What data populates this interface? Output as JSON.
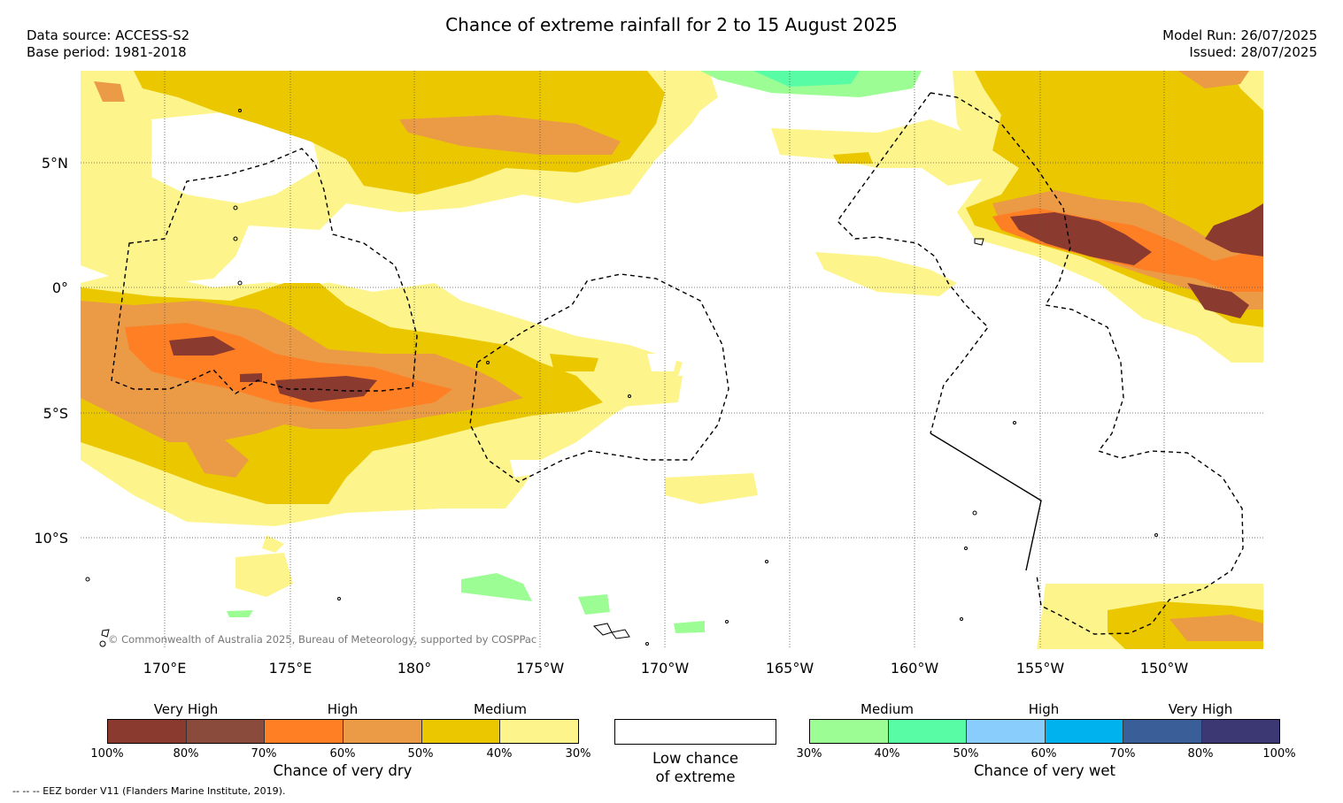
{
  "header": {
    "title": "Chance of extreme rainfall for 2 to 15 August 2025",
    "data_source": "Data source: ACCESS-S2",
    "base_period": "Base period: 1981-2018",
    "model_run": "Model Run: 26/07/2025",
    "issued": "Issued: 28/07/2025"
  },
  "map": {
    "lat_labels": [
      "5°N",
      "0°",
      "5°S",
      "10°S"
    ],
    "lon_labels": [
      "170°E",
      "175°E",
      "180°",
      "175°W",
      "170°W",
      "165°W",
      "160°W",
      "155°W",
      "150°W"
    ],
    "copyright": "© Commonwealth of Australia 2025, Bureau of Meteorology, supported by COSPPac"
  },
  "colors": {
    "dry": [
      "#8b3a2f",
      "#8a4b3d",
      "#ff7f24",
      "#eb9a46",
      "#ebc700",
      "#fdf58b"
    ],
    "low": "#ffffff",
    "wet": [
      "#9cfd95",
      "#57fca4",
      "#88cdfb",
      "#00b2ee",
      "#3a5f98",
      "#3c3873"
    ]
  },
  "legend": {
    "dry": {
      "categories": [
        "Very High",
        "High",
        "Medium"
      ],
      "ticks": [
        "100%",
        "80%",
        "70%",
        "60%",
        "50%",
        "40%",
        "30%"
      ],
      "title": "Chance of very dry"
    },
    "low": {
      "line1": "Low chance",
      "line2": "of extreme"
    },
    "wet": {
      "categories": [
        "Medium",
        "High",
        "Very High"
      ],
      "ticks": [
        "30%",
        "40%",
        "50%",
        "60%",
        "70%",
        "80%",
        "100%"
      ],
      "title": "Chance of very wet"
    }
  },
  "footer": {
    "eez_note": "--  --  -- EEZ border V11 (Flanders Marine Institute, 2019)."
  }
}
